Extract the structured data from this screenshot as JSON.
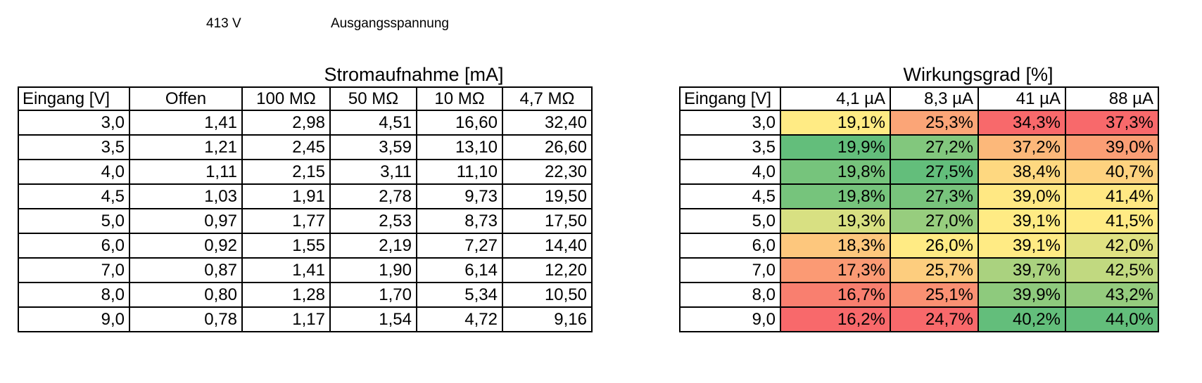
{
  "header": {
    "voltage": "413 V",
    "label": "Ausgangsspannung"
  },
  "chart_data": [
    {
      "type": "table",
      "title": "Stromaufnahme [mA]",
      "unit": "mA",
      "columns": [
        "Eingang [V]",
        "Offen",
        "100 MΩ",
        "50 MΩ",
        "10 MΩ",
        "4,7 MΩ"
      ],
      "rows": [
        [
          "3,0",
          "1,41",
          "2,98",
          "4,51",
          "16,60",
          "32,40"
        ],
        [
          "3,5",
          "1,21",
          "2,45",
          "3,59",
          "13,10",
          "26,60"
        ],
        [
          "4,0",
          "1,11",
          "2,15",
          "3,11",
          "11,10",
          "22,30"
        ],
        [
          "4,5",
          "1,03",
          "1,91",
          "2,78",
          "9,73",
          "19,50"
        ],
        [
          "5,0",
          "0,97",
          "1,77",
          "2,53",
          "8,73",
          "17,50"
        ],
        [
          "6,0",
          "0,92",
          "1,55",
          "2,19",
          "7,27",
          "14,40"
        ],
        [
          "7,0",
          "0,87",
          "1,41",
          "1,90",
          "6,14",
          "12,20"
        ],
        [
          "8,0",
          "0,80",
          "1,28",
          "1,70",
          "5,34",
          "10,50"
        ],
        [
          "9,0",
          "0,78",
          "1,17",
          "1,54",
          "4,72",
          "9,16"
        ]
      ]
    },
    {
      "type": "table",
      "title": "Wirkungsgrad [%]",
      "unit": "%",
      "columns": [
        "Eingang [V]",
        "4,1 µA",
        "8,3 µA",
        "41 µA",
        "88 µA"
      ],
      "rows": [
        [
          "3,0",
          "19,1%",
          "25,3%",
          "34,3%",
          "37,3%"
        ],
        [
          "3,5",
          "19,9%",
          "27,2%",
          "37,2%",
          "39,0%"
        ],
        [
          "4,0",
          "19,8%",
          "27,5%",
          "38,4%",
          "40,7%"
        ],
        [
          "4,5",
          "19,8%",
          "27,3%",
          "39,0%",
          "41,4%"
        ],
        [
          "5,0",
          "19,3%",
          "27,0%",
          "39,1%",
          "41,5%"
        ],
        [
          "6,0",
          "18,3%",
          "26,0%",
          "39,1%",
          "42,0%"
        ],
        [
          "7,0",
          "17,3%",
          "25,7%",
          "39,7%",
          "42,5%"
        ],
        [
          "8,0",
          "16,7%",
          "25,1%",
          "39,9%",
          "43,2%"
        ],
        [
          "9,0",
          "16,2%",
          "24,7%",
          "40,2%",
          "44,0%"
        ]
      ],
      "conditional_formatting": {
        "type": "3-color-scale-per-column",
        "min_color": "#F8696B",
        "mid_color": "#FFEB84",
        "max_color": "#63BE7B",
        "midpoint": "50th-percentile"
      }
    }
  ]
}
